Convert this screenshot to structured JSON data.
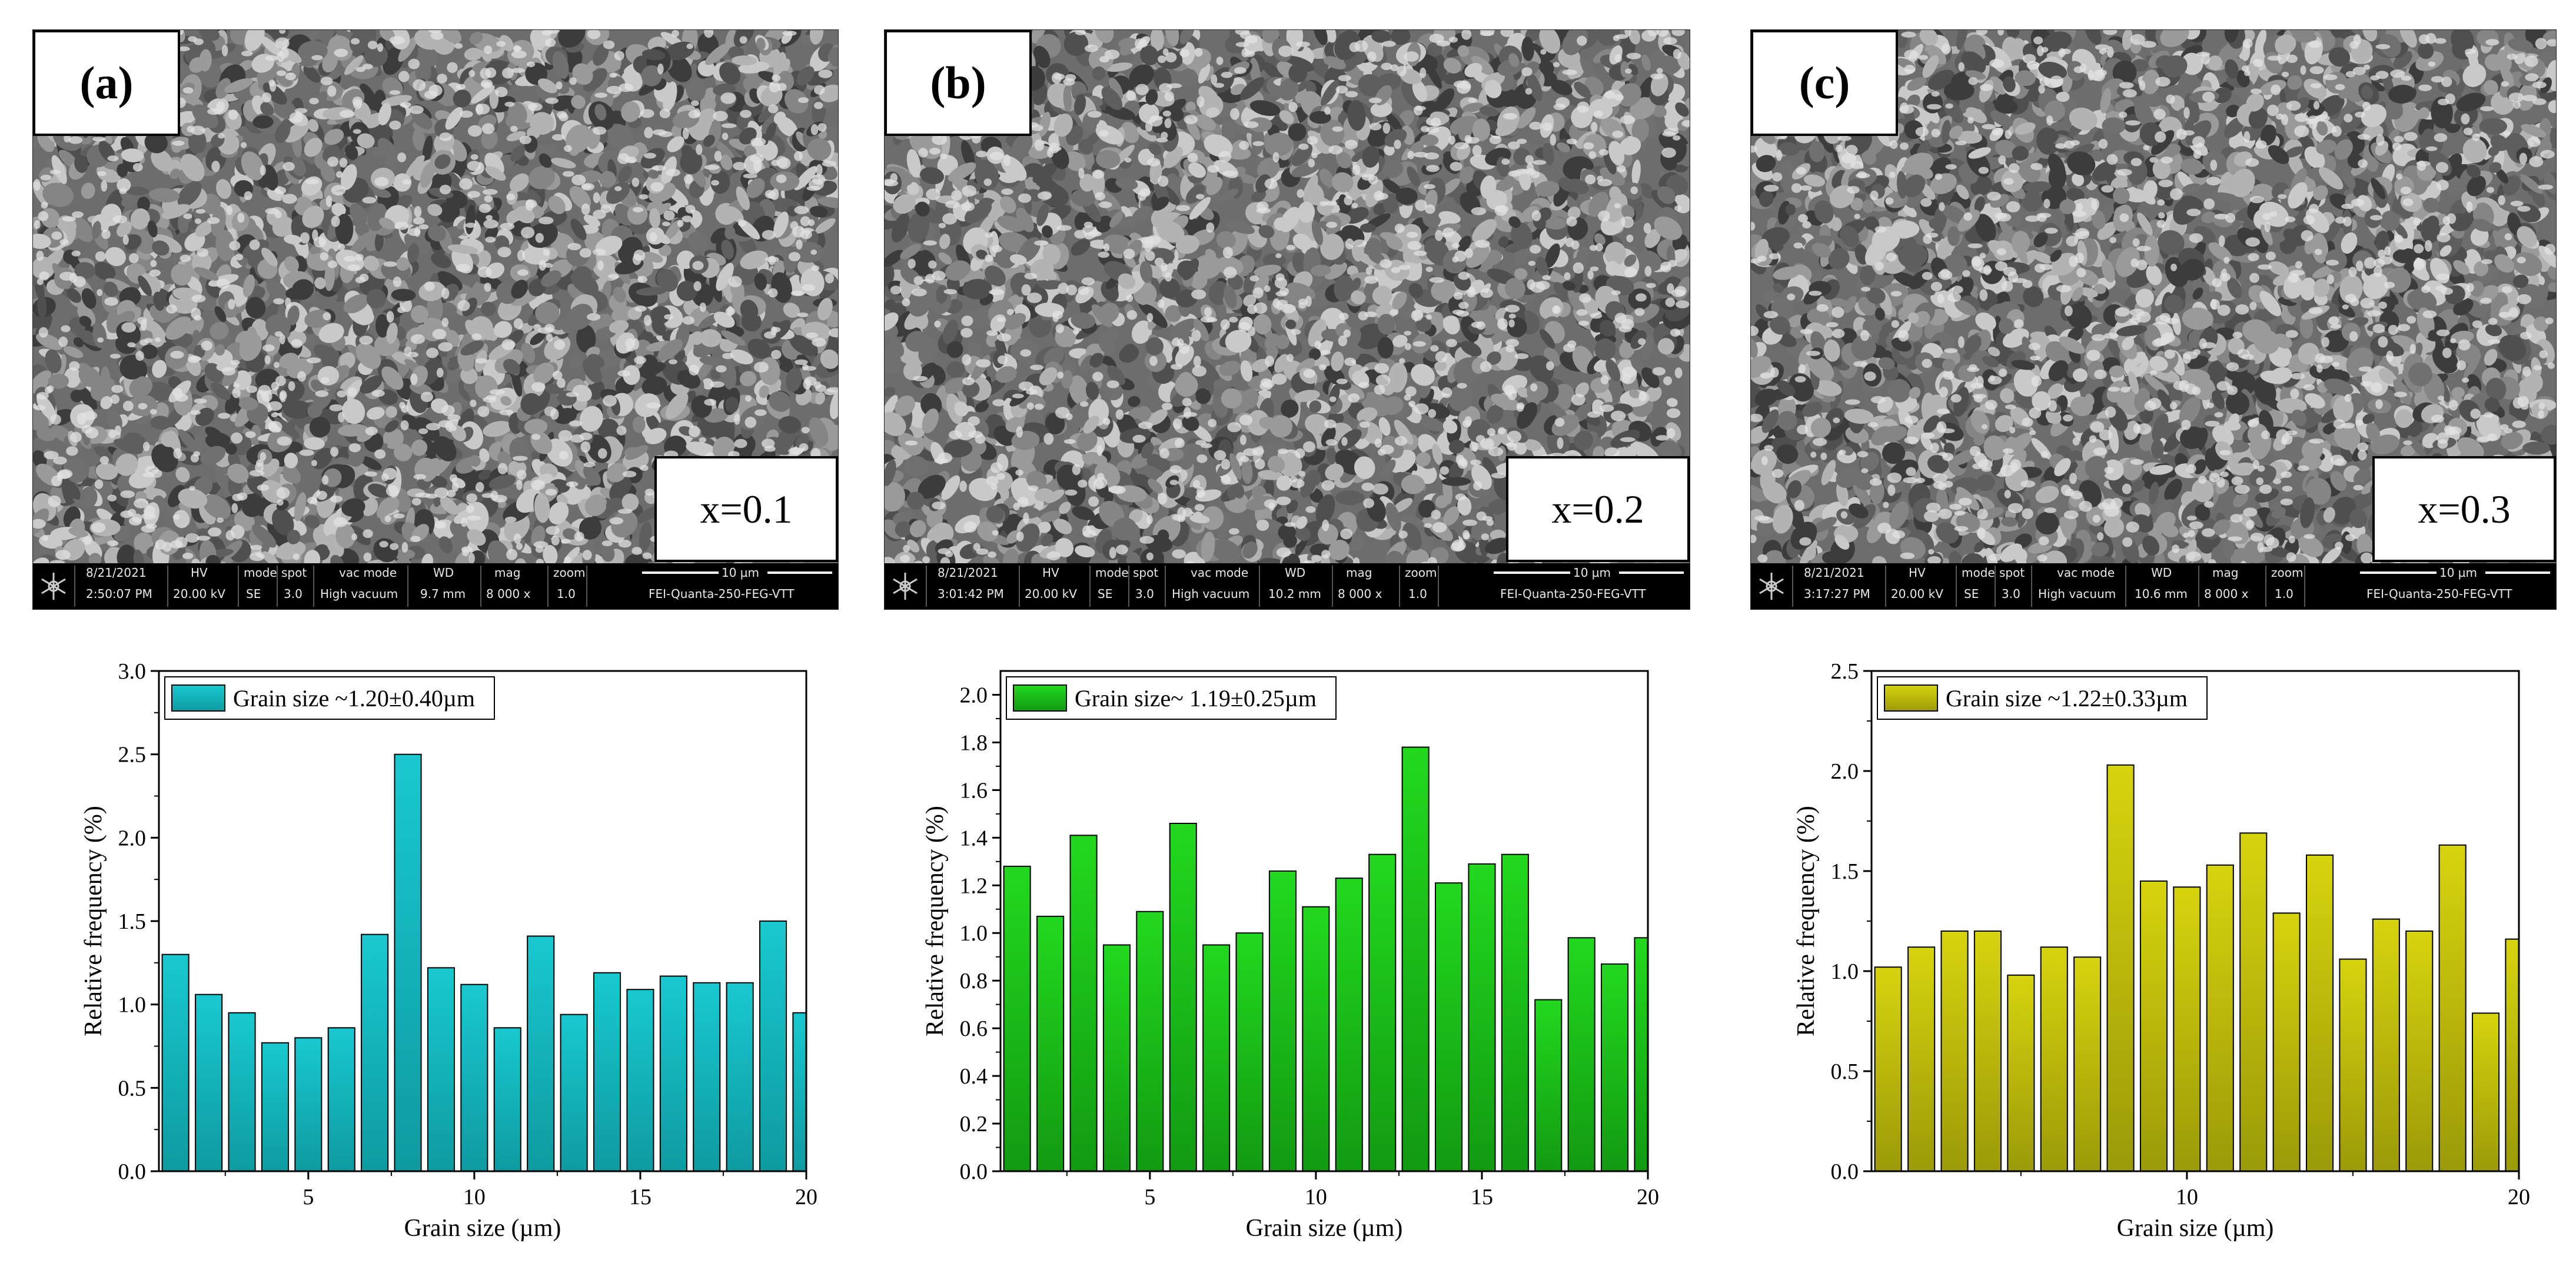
{
  "panels": [
    {
      "label_open": "(",
      "label_letter": "a",
      "label_close": ")",
      "composition": "x=0.1",
      "databar": {
        "date": "8/21/2021",
        "time": "2:50:07 PM",
        "hv_label": "HV",
        "hv": "20.00 kV",
        "mode_label": "mode",
        "mode": "SE",
        "spot_label": "spot",
        "spot": "3.0",
        "vac_label": "vac mode",
        "vac": "High vacuum",
        "wd_label": "WD",
        "wd": "9.7 mm",
        "mag_label": "mag",
        "mag": "8 000 x",
        "zoom_label": "zoom",
        "zoom": "1.0",
        "scale": "10 µm",
        "instrument": "FEI-Quanta-250-FEG-VTT"
      }
    },
    {
      "label_open": "(",
      "label_letter": "b",
      "label_close": ")",
      "composition": "x=0.2",
      "databar": {
        "date": "8/21/2021",
        "time": "3:01:42 PM",
        "hv_label": "HV",
        "hv": "20.00 kV",
        "mode_label": "mode",
        "mode": "SE",
        "spot_label": "spot",
        "spot": "3.0",
        "vac_label": "vac mode",
        "vac": "High vacuum",
        "wd_label": "WD",
        "wd": "10.2 mm",
        "mag_label": "mag",
        "mag": "8 000 x",
        "zoom_label": "zoom",
        "zoom": "1.0",
        "scale": "10 µm",
        "instrument": "FEI-Quanta-250-FEG-VTT"
      }
    },
    {
      "label_open": "(",
      "label_letter": "c",
      "label_close": ")",
      "composition": "x=0.3",
      "databar": {
        "date": "8/21/2021",
        "time": "3:17:27 PM",
        "hv_label": "HV",
        "hv": "20.00 kV",
        "mode_label": "mode",
        "mode": "SE",
        "spot_label": "spot",
        "spot": "3.0",
        "vac_label": "vac mode",
        "vac": "High vacuum",
        "wd_label": "WD",
        "wd": "10.6 mm",
        "mag_label": "mag",
        "mag": "8 000 x",
        "zoom_label": "zoom",
        "zoom": "1.0",
        "scale": "10 µm",
        "instrument": "FEI-Quanta-250-FEG-VTT"
      }
    }
  ],
  "chart_data": [
    {
      "type": "bar",
      "legend": "Grain size ~1.20±0.40µm",
      "xlabel": "Grain size (µm)",
      "ylabel": "Relative frequency (%)",
      "xlim": [
        0.5,
        20
      ],
      "ylim": [
        0,
        3.0
      ],
      "xticks": [
        5,
        10,
        15,
        20
      ],
      "yticks": [
        0.0,
        0.5,
        1.0,
        1.5,
        2.0,
        2.5,
        3.0
      ],
      "ytick_labels": [
        "0.0",
        "0.5",
        "1.0",
        "1.5",
        "2.0",
        "2.5",
        "3.0"
      ],
      "x": [
        1,
        2,
        3,
        4,
        5,
        6,
        7,
        8,
        9,
        10,
        11,
        12,
        13,
        14,
        15,
        16,
        17,
        18,
        19,
        20
      ],
      "values": [
        1.3,
        1.06,
        0.95,
        0.77,
        0.8,
        0.86,
        1.42,
        2.5,
        1.22,
        1.12,
        0.86,
        1.41,
        0.94,
        1.19,
        1.09,
        1.17,
        1.13,
        1.13,
        1.5,
        0.95
      ],
      "color": "#18c9cf",
      "color_dark": "#0f9aa1"
    },
    {
      "type": "bar",
      "legend": "Grain size~ 1.19±0.25µm",
      "xlabel": "Grain size (µm)",
      "ylabel": "Relative frequency (%)",
      "xlim": [
        0.5,
        20
      ],
      "ylim": [
        0,
        2.1
      ],
      "xticks": [
        5,
        10,
        15,
        20
      ],
      "yticks": [
        0.0,
        0.2,
        0.4,
        0.6,
        0.8,
        1.0,
        1.2,
        1.4,
        1.6,
        1.8,
        2.0
      ],
      "ytick_labels": [
        "0.0",
        "0.2",
        "0.4",
        "0.6",
        "0.8",
        "1.0",
        "1.2",
        "1.4",
        "1.6",
        "1.8",
        "2.0"
      ],
      "x": [
        1,
        2,
        3,
        4,
        5,
        6,
        7,
        8,
        9,
        10,
        11,
        12,
        13,
        14,
        15,
        16,
        17,
        18,
        19,
        20
      ],
      "values": [
        1.28,
        1.07,
        1.41,
        0.95,
        1.09,
        1.46,
        0.95,
        1.0,
        1.26,
        1.11,
        1.23,
        1.33,
        1.78,
        1.21,
        1.29,
        1.33,
        0.72,
        0.98,
        0.87,
        0.98
      ],
      "color": "#22d91e",
      "color_dark": "#129a12"
    },
    {
      "type": "bar",
      "legend": "Grain size ~1.22±0.33µm",
      "xlabel": "Grain size (µm)",
      "ylabel": "Relative frequency (%)",
      "xlim": [
        0.5,
        20
      ],
      "ylim": [
        0,
        2.5
      ],
      "xticks": [
        10,
        20
      ],
      "yticks": [
        0.0,
        0.5,
        1.0,
        1.5,
        2.0,
        2.5
      ],
      "ytick_labels": [
        "0.0",
        "0.5",
        "1.0",
        "1.5",
        "2.0",
        "2.5"
      ],
      "x": [
        1,
        2,
        3,
        4,
        5,
        6,
        7,
        8,
        9,
        10,
        11,
        12,
        13,
        14,
        15,
        16,
        17,
        18,
        19,
        20
      ],
      "values": [
        1.02,
        1.12,
        1.2,
        1.2,
        0.98,
        1.12,
        1.07,
        2.03,
        1.45,
        1.42,
        1.53,
        1.69,
        1.29,
        1.58,
        1.06,
        1.26,
        1.2,
        1.63,
        0.79,
        1.16
      ],
      "color": "#d6d40e",
      "color_dark": "#9c9a08"
    }
  ]
}
